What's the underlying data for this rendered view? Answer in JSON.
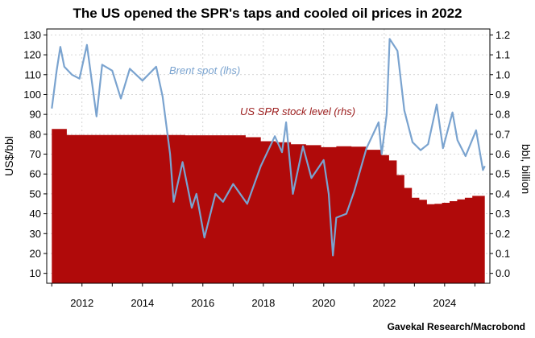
{
  "chart_data": {
    "type": "area+line",
    "title": "The US opened the SPR's taps and cooled oil prices in 2022",
    "source": "Gavekal Research/Macrobond",
    "colors": {
      "spr": "#b00a0a",
      "brent": "#7aa3cf",
      "brent_label": "#7aa3cf",
      "spr_label": "#9b1b1b"
    },
    "grid": true,
    "x_axis": {
      "type": "date",
      "range": [
        "2010-11-01",
        "2025-07-01"
      ],
      "tick_labels": [
        "2012",
        "2014",
        "2016",
        "2018",
        "2020",
        "2022",
        "2024"
      ]
    },
    "y_left": {
      "label": "US$/bbl",
      "range": [
        5,
        133
      ],
      "tick_labels": [
        "10",
        "20",
        "30",
        "40",
        "50",
        "60",
        "70",
        "80",
        "90",
        "100",
        "110",
        "120",
        "130"
      ]
    },
    "y_right": {
      "label": "bbl, billion",
      "range": [
        -0.05,
        1.23
      ],
      "tick_labels": [
        "0.0",
        "0.1",
        "0.2",
        "0.3",
        "0.4",
        "0.5",
        "0.6",
        "0.7",
        "0.8",
        "0.9",
        "1.0",
        "1.1",
        "1.2"
      ]
    },
    "series": [
      {
        "name": "US SPR stock level (rhs)",
        "axis": "right",
        "kind": "area",
        "points": [
          [
            "2011-01-01",
            0.727
          ],
          [
            "2011-06-01",
            0.727
          ],
          [
            "2011-07-01",
            0.696
          ],
          [
            "2014-12-01",
            0.696
          ],
          [
            "2015-06-01",
            0.695
          ],
          [
            "2015-12-01",
            0.695
          ],
          [
            "2016-06-01",
            0.695
          ],
          [
            "2017-01-01",
            0.695
          ],
          [
            "2017-06-01",
            0.685
          ],
          [
            "2017-12-01",
            0.665
          ],
          [
            "2018-06-01",
            0.66
          ],
          [
            "2018-12-01",
            0.65
          ],
          [
            "2019-06-01",
            0.645
          ],
          [
            "2019-12-01",
            0.635
          ],
          [
            "2020-06-01",
            0.64
          ],
          [
            "2020-12-01",
            0.638
          ],
          [
            "2021-06-01",
            0.622
          ],
          [
            "2021-12-01",
            0.595
          ],
          [
            "2022-03-01",
            0.568
          ],
          [
            "2022-06-01",
            0.495
          ],
          [
            "2022-09-01",
            0.43
          ],
          [
            "2022-12-01",
            0.38
          ],
          [
            "2023-03-01",
            0.37
          ],
          [
            "2023-06-01",
            0.348
          ],
          [
            "2023-09-01",
            0.35
          ],
          [
            "2023-12-01",
            0.355
          ],
          [
            "2024-03-01",
            0.363
          ],
          [
            "2024-06-01",
            0.372
          ],
          [
            "2024-09-01",
            0.38
          ],
          [
            "2024-12-01",
            0.39
          ],
          [
            "2025-05-01",
            0.397
          ]
        ]
      },
      {
        "name": "Brent spot (lhs)",
        "axis": "left",
        "kind": "line",
        "points": [
          [
            "2011-01-01",
            93
          ],
          [
            "2011-03-01",
            112
          ],
          [
            "2011-04-15",
            124
          ],
          [
            "2011-06-01",
            114
          ],
          [
            "2011-09-01",
            110
          ],
          [
            "2011-12-01",
            108
          ],
          [
            "2012-03-01",
            125
          ],
          [
            "2012-06-25",
            89
          ],
          [
            "2012-09-01",
            115
          ],
          [
            "2013-01-01",
            112
          ],
          [
            "2013-04-15",
            98
          ],
          [
            "2013-08-01",
            113
          ],
          [
            "2014-01-01",
            107
          ],
          [
            "2014-06-15",
            114
          ],
          [
            "2014-09-01",
            99
          ],
          [
            "2014-12-01",
            70
          ],
          [
            "2015-01-13",
            46
          ],
          [
            "2015-05-01",
            66
          ],
          [
            "2015-08-20",
            43
          ],
          [
            "2015-10-15",
            50
          ],
          [
            "2016-01-20",
            28
          ],
          [
            "2016-06-01",
            50
          ],
          [
            "2016-09-01",
            46
          ],
          [
            "2017-01-01",
            55
          ],
          [
            "2017-06-20",
            45
          ],
          [
            "2017-12-01",
            64
          ],
          [
            "2018-05-20",
            79
          ],
          [
            "2018-08-15",
            71
          ],
          [
            "2018-10-03",
            86
          ],
          [
            "2018-12-24",
            50
          ],
          [
            "2019-04-25",
            74
          ],
          [
            "2019-08-05",
            58
          ],
          [
            "2019-12-31",
            67
          ],
          [
            "2020-03-01",
            50
          ],
          [
            "2020-04-21",
            19
          ],
          [
            "2020-06-01",
            38
          ],
          [
            "2020-10-01",
            40
          ],
          [
            "2021-01-01",
            51
          ],
          [
            "2021-06-01",
            73
          ],
          [
            "2021-10-25",
            86
          ],
          [
            "2021-12-01",
            70
          ],
          [
            "2022-01-31",
            90
          ],
          [
            "2022-03-08",
            128
          ],
          [
            "2022-06-10",
            122
          ],
          [
            "2022-09-01",
            92
          ],
          [
            "2022-12-09",
            76
          ],
          [
            "2023-03-17",
            72
          ],
          [
            "2023-06-15",
            75
          ],
          [
            "2023-09-27",
            95
          ],
          [
            "2023-12-12",
            73
          ],
          [
            "2024-04-05",
            91
          ],
          [
            "2024-06-05",
            77
          ],
          [
            "2024-09-10",
            69
          ],
          [
            "2025-01-15",
            82
          ],
          [
            "2025-04-08",
            62
          ],
          [
            "2025-05-01",
            64
          ]
        ]
      }
    ],
    "annotations": [
      {
        "text": "Brent spot (lhs)",
        "series": 1
      },
      {
        "text": "US SPR stock level (rhs)",
        "series": 0
      }
    ]
  }
}
